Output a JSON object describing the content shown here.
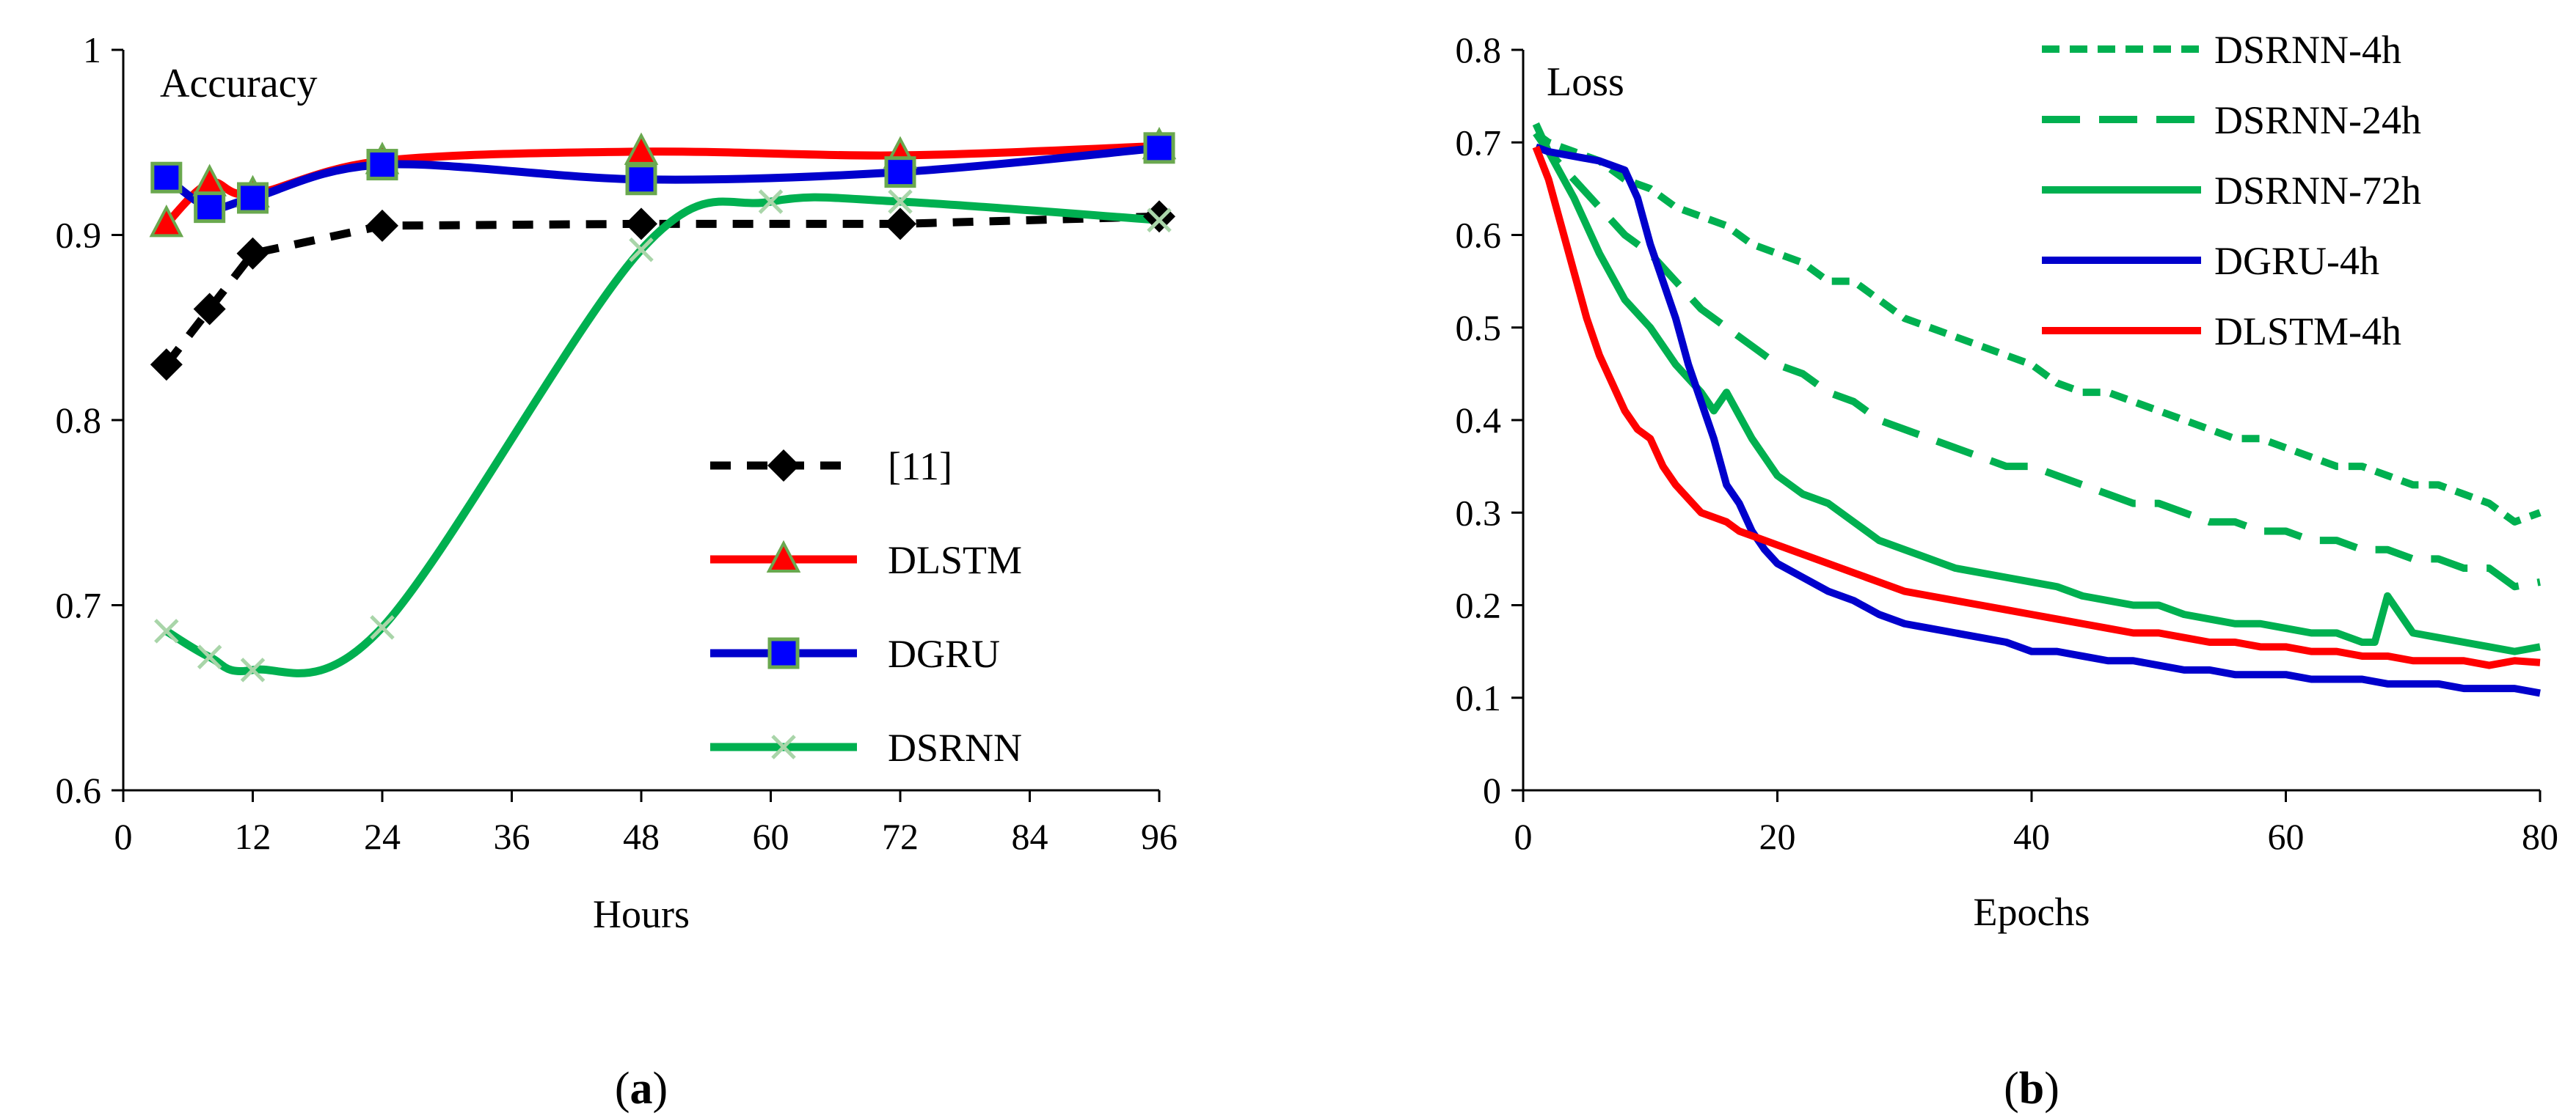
{
  "figure": {
    "panel_a_label": {
      "open": "(",
      "letter": "a",
      "close": ")"
    },
    "panel_b_label": {
      "open": "(",
      "letter": "b",
      "close": ")"
    }
  },
  "chart_data": [
    {
      "type": "line",
      "title": "Accuracy",
      "xlabel": "Hours",
      "ylabel": "",
      "xlim": [
        0,
        96
      ],
      "ylim": [
        0.6,
        1.0
      ],
      "xticks": [
        0,
        12,
        24,
        36,
        48,
        60,
        72,
        84,
        96
      ],
      "yticks": [
        0.6,
        0.7,
        0.8,
        0.9,
        1.0
      ],
      "ytick_labels": [
        "0.6",
        "0.7",
        "0.8",
        "0.9",
        "1"
      ],
      "grid": false,
      "legend_position": "lower-right",
      "series": [
        {
          "name": "[11]",
          "color": "#000000",
          "dash": "dashed",
          "marker": "diamond",
          "smooth": false,
          "x": [
            4,
            8,
            12,
            24,
            48,
            72,
            96
          ],
          "values": [
            0.83,
            0.86,
            0.89,
            0.905,
            0.906,
            0.906,
            0.91
          ]
        },
        {
          "name": "DLSTM",
          "color": "#ff0000",
          "dash": "solid",
          "marker": "triangle",
          "marker_fill": "#ff0000",
          "marker_edge": "#6aa84f",
          "smooth": true,
          "x": [
            4,
            8,
            12,
            24,
            48,
            72,
            96
          ],
          "values": [
            0.906,
            0.928,
            0.922,
            0.94,
            0.945,
            0.943,
            0.948
          ]
        },
        {
          "name": "DGRU",
          "color": "#0000cc",
          "dash": "solid",
          "marker": "square",
          "marker_fill": "#0000ff",
          "marker_edge": "#6aa84f",
          "smooth": true,
          "x": [
            4,
            8,
            12,
            24,
            48,
            72,
            96
          ],
          "values": [
            0.931,
            0.915,
            0.92,
            0.938,
            0.93,
            0.934,
            0.947
          ]
        },
        {
          "name": "DSRNN",
          "color": "#00b050",
          "dash": "solid",
          "marker": "x",
          "marker_color": "#a9d5a9",
          "smooth": true,
          "x": [
            4,
            8,
            12,
            24,
            48,
            60,
            72,
            96
          ],
          "values": [
            0.686,
            0.672,
            0.665,
            0.688,
            0.892,
            0.918,
            0.918,
            0.908
          ]
        }
      ]
    },
    {
      "type": "line",
      "title": "Loss",
      "xlabel": "Epochs",
      "ylabel": "",
      "xlim": [
        0,
        80
      ],
      "ylim": [
        0,
        0.8
      ],
      "xticks": [
        0,
        20,
        40,
        60,
        80
      ],
      "yticks": [
        0,
        0.1,
        0.2,
        0.3,
        0.4,
        0.5,
        0.6,
        0.7,
        0.8
      ],
      "ytick_labels": [
        "0",
        "0.1",
        "0.2",
        "0.3",
        "0.4",
        "0.5",
        "0.6",
        "0.7",
        "0.8"
      ],
      "grid": false,
      "legend_position": "top-right",
      "series": [
        {
          "name": "DSRNN-4h",
          "color": "#00b050",
          "dash": "short-dash",
          "x": [
            1,
            2,
            4,
            6,
            8,
            10,
            12,
            14,
            16,
            18,
            20,
            22,
            24,
            26,
            28,
            30,
            32,
            34,
            36,
            38,
            40,
            42,
            44,
            46,
            48,
            50,
            52,
            54,
            56,
            58,
            60,
            62,
            64,
            66,
            68,
            70,
            72,
            74,
            76,
            78,
            80
          ],
          "values": [
            0.71,
            0.7,
            0.69,
            0.68,
            0.66,
            0.65,
            0.63,
            0.62,
            0.61,
            0.59,
            0.58,
            0.57,
            0.55,
            0.55,
            0.53,
            0.51,
            0.5,
            0.49,
            0.48,
            0.47,
            0.46,
            0.44,
            0.43,
            0.43,
            0.42,
            0.41,
            0.4,
            0.39,
            0.38,
            0.38,
            0.37,
            0.36,
            0.35,
            0.35,
            0.34,
            0.33,
            0.33,
            0.32,
            0.31,
            0.29,
            0.3
          ]
        },
        {
          "name": "DSRNN-24h",
          "color": "#00b050",
          "dash": "long-dash",
          "x": [
            1,
            2,
            4,
            6,
            8,
            10,
            12,
            14,
            16,
            18,
            20,
            22,
            24,
            26,
            28,
            30,
            32,
            34,
            36,
            38,
            40,
            42,
            44,
            46,
            48,
            50,
            52,
            54,
            56,
            58,
            60,
            62,
            64,
            66,
            68,
            70,
            72,
            74,
            76,
            78,
            80
          ],
          "values": [
            0.71,
            0.69,
            0.66,
            0.63,
            0.6,
            0.58,
            0.55,
            0.52,
            0.5,
            0.48,
            0.46,
            0.45,
            0.43,
            0.42,
            0.4,
            0.39,
            0.38,
            0.37,
            0.36,
            0.35,
            0.35,
            0.34,
            0.33,
            0.32,
            0.31,
            0.31,
            0.3,
            0.29,
            0.29,
            0.28,
            0.28,
            0.27,
            0.27,
            0.26,
            0.26,
            0.25,
            0.25,
            0.24,
            0.24,
            0.22,
            0.225
          ]
        },
        {
          "name": "DSRNN-72h",
          "color": "#00b050",
          "dash": "solid",
          "x": [
            1,
            2,
            4,
            6,
            8,
            10,
            12,
            14,
            15,
            16,
            18,
            20,
            22,
            24,
            26,
            28,
            30,
            32,
            34,
            36,
            38,
            40,
            42,
            44,
            46,
            48,
            50,
            52,
            54,
            56,
            58,
            60,
            62,
            64,
            66,
            67,
            68,
            70,
            72,
            74,
            76,
            78,
            80
          ],
          "values": [
            0.72,
            0.69,
            0.64,
            0.58,
            0.53,
            0.5,
            0.46,
            0.43,
            0.41,
            0.43,
            0.38,
            0.34,
            0.32,
            0.31,
            0.29,
            0.27,
            0.26,
            0.25,
            0.24,
            0.235,
            0.23,
            0.225,
            0.22,
            0.21,
            0.205,
            0.2,
            0.2,
            0.19,
            0.185,
            0.18,
            0.18,
            0.175,
            0.17,
            0.17,
            0.16,
            0.16,
            0.21,
            0.17,
            0.165,
            0.16,
            0.155,
            0.15,
            0.155
          ]
        },
        {
          "name": "DGRU-4h",
          "color": "#0000cc",
          "dash": "solid",
          "x": [
            1,
            2,
            4,
            6,
            8,
            9,
            10,
            11,
            12,
            13,
            14,
            15,
            16,
            17,
            18,
            19,
            20,
            22,
            24,
            26,
            28,
            30,
            32,
            34,
            36,
            38,
            40,
            42,
            44,
            46,
            48,
            50,
            52,
            54,
            56,
            58,
            60,
            62,
            64,
            66,
            68,
            70,
            72,
            74,
            76,
            78,
            80
          ],
          "values": [
            0.695,
            0.69,
            0.685,
            0.68,
            0.67,
            0.64,
            0.59,
            0.55,
            0.51,
            0.46,
            0.42,
            0.38,
            0.33,
            0.31,
            0.28,
            0.26,
            0.245,
            0.23,
            0.215,
            0.205,
            0.19,
            0.18,
            0.175,
            0.17,
            0.165,
            0.16,
            0.15,
            0.15,
            0.145,
            0.14,
            0.14,
            0.135,
            0.13,
            0.13,
            0.125,
            0.125,
            0.125,
            0.12,
            0.12,
            0.12,
            0.115,
            0.115,
            0.115,
            0.11,
            0.11,
            0.11,
            0.105
          ]
        },
        {
          "name": "DLSTM-4h",
          "color": "#ff0000",
          "dash": "solid",
          "x": [
            1,
            2,
            3,
            4,
            5,
            6,
            7,
            8,
            9,
            10,
            11,
            12,
            13,
            14,
            15,
            16,
            17,
            18,
            20,
            22,
            24,
            26,
            28,
            30,
            32,
            34,
            36,
            38,
            40,
            42,
            44,
            46,
            48,
            50,
            52,
            54,
            56,
            58,
            60,
            62,
            64,
            66,
            68,
            70,
            72,
            74,
            76,
            78,
            80
          ],
          "values": [
            0.695,
            0.66,
            0.61,
            0.56,
            0.51,
            0.47,
            0.44,
            0.41,
            0.39,
            0.38,
            0.35,
            0.33,
            0.315,
            0.3,
            0.295,
            0.29,
            0.28,
            0.275,
            0.265,
            0.255,
            0.245,
            0.235,
            0.225,
            0.215,
            0.21,
            0.205,
            0.2,
            0.195,
            0.19,
            0.185,
            0.18,
            0.175,
            0.17,
            0.17,
            0.165,
            0.16,
            0.16,
            0.155,
            0.155,
            0.15,
            0.15,
            0.145,
            0.145,
            0.14,
            0.14,
            0.14,
            0.135,
            0.14,
            0.138
          ]
        }
      ]
    }
  ]
}
